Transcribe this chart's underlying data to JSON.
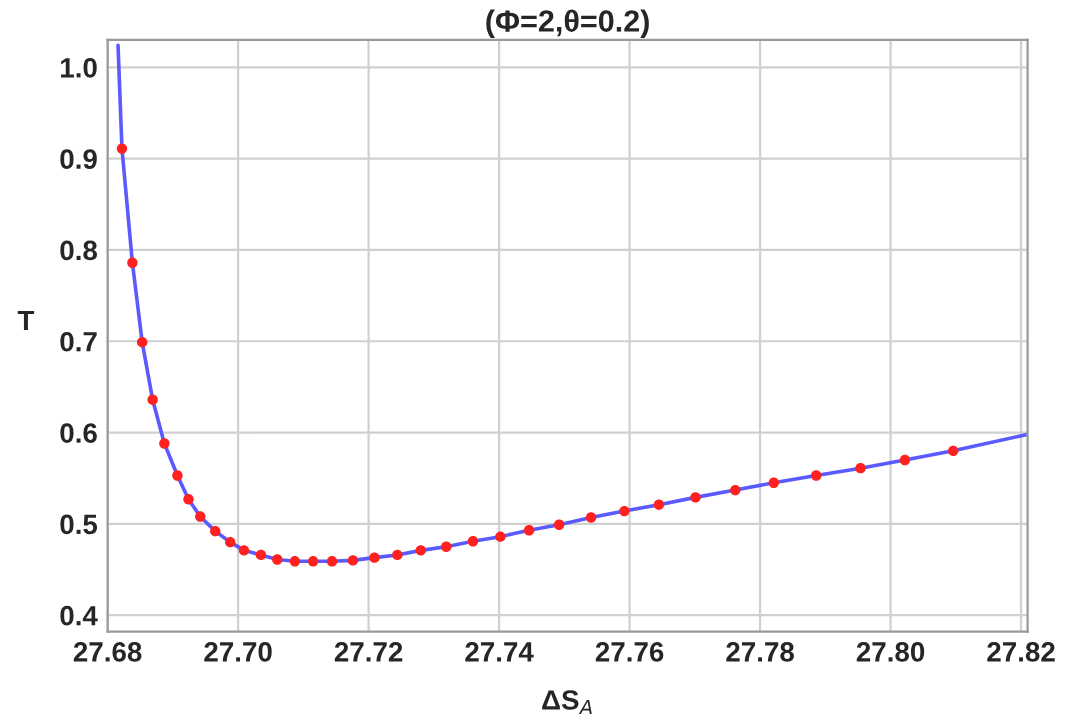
{
  "chart_data": {
    "type": "scatter",
    "title": "(Φ=2,θ=0.2)",
    "xlabel": "ΔS$_{A}$",
    "ylabel": "T",
    "xlim": [
      27.68,
      27.821
    ],
    "ylim": [
      0.382,
      1.03
    ],
    "xticks": [
      {
        "value": 27.68,
        "label": "27.68"
      },
      {
        "value": 27.7,
        "label": "27.70"
      },
      {
        "value": 27.72,
        "label": "27.72"
      },
      {
        "value": 27.74,
        "label": "27.74"
      },
      {
        "value": 27.76,
        "label": "27.76"
      },
      {
        "value": 27.78,
        "label": "27.78"
      },
      {
        "value": 27.8,
        "label": "27.80"
      },
      {
        "value": 27.82,
        "label": "27.82"
      }
    ],
    "yticks": [
      0.4,
      0.5,
      0.6,
      0.7,
      0.8,
      0.9,
      {
        "value": 1.0,
        "label": "1.0"
      }
    ],
    "grid": true,
    "marker": "circle",
    "series": [
      {
        "type": "line",
        "color": "#5a5aff",
        "line_style": "solid",
        "marker": "none",
        "x": [
          27.6816,
          27.6822,
          27.6838,
          27.6853,
          27.6869,
          27.6887,
          27.6907,
          27.6924,
          27.6942,
          27.6965,
          27.6988,
          27.7009,
          27.7035,
          27.706,
          27.7087,
          27.7115,
          27.7144,
          27.7176,
          27.7209,
          27.7244,
          27.728,
          27.7319,
          27.736,
          27.7402,
          27.7446,
          27.7492,
          27.7541,
          27.7592,
          27.7645,
          27.7701,
          27.7762,
          27.7821,
          27.7886,
          27.7954,
          27.8022,
          27.8096,
          27.821
        ],
        "values": [
          1.024,
          0.911,
          0.786,
          0.699,
          0.636,
          0.588,
          0.553,
          0.527,
          0.508,
          0.492,
          0.48,
          0.471,
          0.466,
          0.461,
          0.459,
          0.459,
          0.459,
          0.46,
          0.463,
          0.466,
          0.471,
          0.475,
          0.481,
          0.486,
          0.493,
          0.499,
          0.507,
          0.514,
          0.521,
          0.529,
          0.537,
          0.545,
          0.553,
          0.561,
          0.57,
          0.58,
          0.598
        ]
      },
      {
        "color": "#ff2020",
        "x": [
          27.6822,
          27.6838,
          27.6853,
          27.6869,
          27.6887,
          27.6907,
          27.6924,
          27.6942,
          27.6965,
          27.6988,
          27.7009,
          27.7035,
          27.706,
          27.7087,
          27.7115,
          27.7144,
          27.7176,
          27.7209,
          27.7244,
          27.728,
          27.7319,
          27.736,
          27.7402,
          27.7446,
          27.7492,
          27.7541,
          27.7592,
          27.7645,
          27.7701,
          27.7762,
          27.7821,
          27.7886,
          27.7954,
          27.8022,
          27.8096
        ],
        "values": [
          0.911,
          0.786,
          0.699,
          0.636,
          0.588,
          0.553,
          0.527,
          0.508,
          0.492,
          0.48,
          0.471,
          0.466,
          0.461,
          0.459,
          0.459,
          0.459,
          0.46,
          0.463,
          0.466,
          0.471,
          0.475,
          0.481,
          0.486,
          0.493,
          0.499,
          0.507,
          0.514,
          0.521,
          0.529,
          0.537,
          0.545,
          0.553,
          0.561,
          0.57,
          0.58
        ]
      }
    ]
  }
}
